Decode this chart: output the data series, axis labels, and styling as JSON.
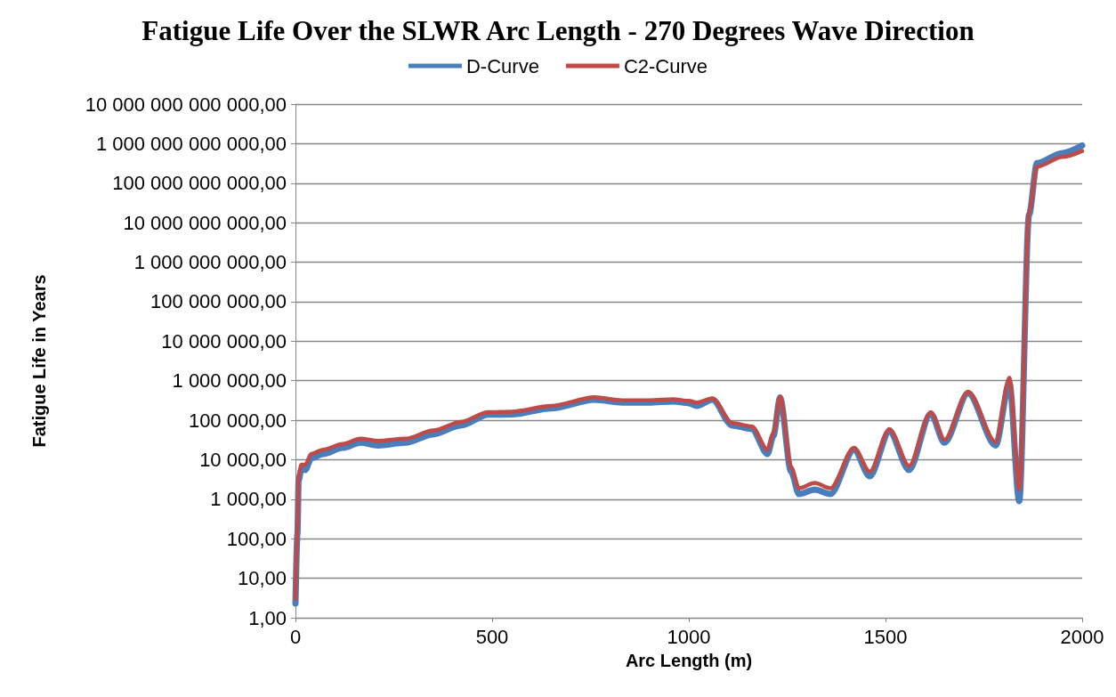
{
  "chart_data": {
    "type": "line",
    "title": "Fatigue Life Over the SLWR Arc Length - 270 Degrees Wave Direction",
    "xlabel": "Arc Length (m)",
    "ylabel": "Fatigue Life in Years",
    "x": [
      0,
      5,
      8,
      15,
      25,
      40,
      70,
      120,
      165,
      210,
      280,
      350,
      420,
      490,
      550,
      650,
      760,
      830,
      900,
      960,
      1000,
      1020,
      1060,
      1110,
      1160,
      1200,
      1215,
      1232,
      1260,
      1280,
      1320,
      1360,
      1420,
      1460,
      1510,
      1560,
      1615,
      1650,
      1710,
      1780,
      1815,
      1840,
      1865,
      1885,
      1950,
      2000
    ],
    "series": [
      {
        "name": "D-Curve",
        "color": "#4a7ebb",
        "values": [
          2.3,
          130,
          3000,
          5800,
          5500,
          11000,
          14000,
          20000,
          27000,
          23000,
          27000,
          44000,
          74000,
          138000,
          140000,
          200000,
          330000,
          280000,
          280000,
          300000,
          270000,
          230000,
          330000,
          74000,
          60000,
          14000,
          40000,
          370000,
          5000,
          1350,
          1750,
          1350,
          18000,
          3800,
          51000,
          5500,
          145000,
          27000,
          480000,
          23000,
          870000,
          900,
          16000000000,
          320000000000,
          580000000000,
          900000000000
        ]
      },
      {
        "name": "C2-Curve",
        "color": "#be4b48",
        "values": [
          3,
          180,
          4000,
          7500,
          7500,
          14000,
          18000,
          25000,
          34000,
          30000,
          34000,
          55000,
          90000,
          160000,
          165000,
          230000,
          380000,
          320000,
          320000,
          340000,
          310000,
          280000,
          360000,
          85000,
          70000,
          18000,
          48000,
          400000,
          6500,
          1900,
          2600,
          1900,
          20000,
          5000,
          60000,
          7000,
          160000,
          32000,
          530000,
          28000,
          1200000,
          1750,
          18000000000,
          260000000000,
          460000000000,
          650000000000
        ]
      }
    ],
    "xlim": [
      0,
      2000
    ],
    "xticks": [
      0,
      500,
      1000,
      1500,
      2000
    ],
    "ylim": [
      1,
      10000000000000
    ],
    "log": "y",
    "yticks": [
      {
        "value": 1,
        "label": "1,00"
      },
      {
        "value": 10,
        "label": "10,00"
      },
      {
        "value": 100,
        "label": "100,00"
      },
      {
        "value": 1000,
        "label": "1 000,00"
      },
      {
        "value": 10000,
        "label": "10 000,00"
      },
      {
        "value": 100000,
        "label": "100 000,00"
      },
      {
        "value": 1000000,
        "label": "1 000 000,00"
      },
      {
        "value": 10000000,
        "label": "10 000 000,00"
      },
      {
        "value": 100000000,
        "label": "100 000 000,00"
      },
      {
        "value": 1000000000,
        "label": "1 000 000 000,00"
      },
      {
        "value": 10000000000,
        "label": "10 000 000 000,00"
      },
      {
        "value": 100000000000,
        "label": "100 000 000 000,00"
      },
      {
        "value": 1000000000000,
        "label": "1 000 000 000 000,00"
      },
      {
        "value": 10000000000000,
        "label": "10 000 000 000 000,00"
      }
    ],
    "grid": "y",
    "legend": "top",
    "marker": "none",
    "line_style": "solid"
  }
}
